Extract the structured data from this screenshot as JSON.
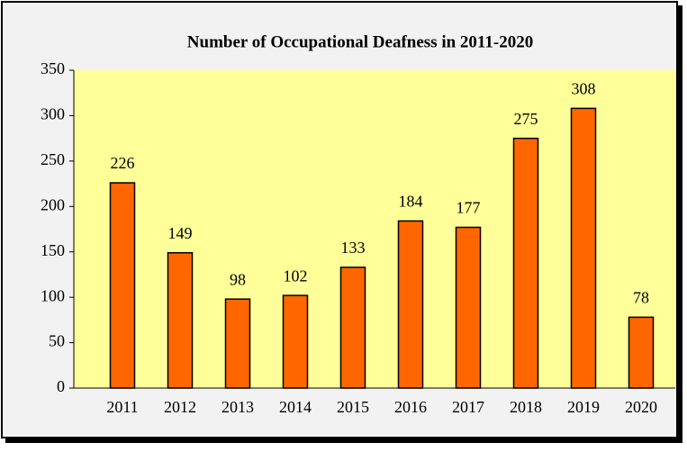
{
  "chart_data": {
    "type": "bar",
    "title": "Number of Occupational Deafness in 2011-2020",
    "categories": [
      "2011",
      "2012",
      "2013",
      "2014",
      "2015",
      "2016",
      "2017",
      "2018",
      "2019",
      "2020"
    ],
    "values": [
      226,
      149,
      98,
      102,
      133,
      184,
      177,
      275,
      308,
      78
    ],
    "color": "#ff6600",
    "ylim": [
      0,
      350
    ],
    "yticks": [
      0,
      50,
      100,
      150,
      200,
      250,
      300,
      350
    ],
    "grid": false
  }
}
